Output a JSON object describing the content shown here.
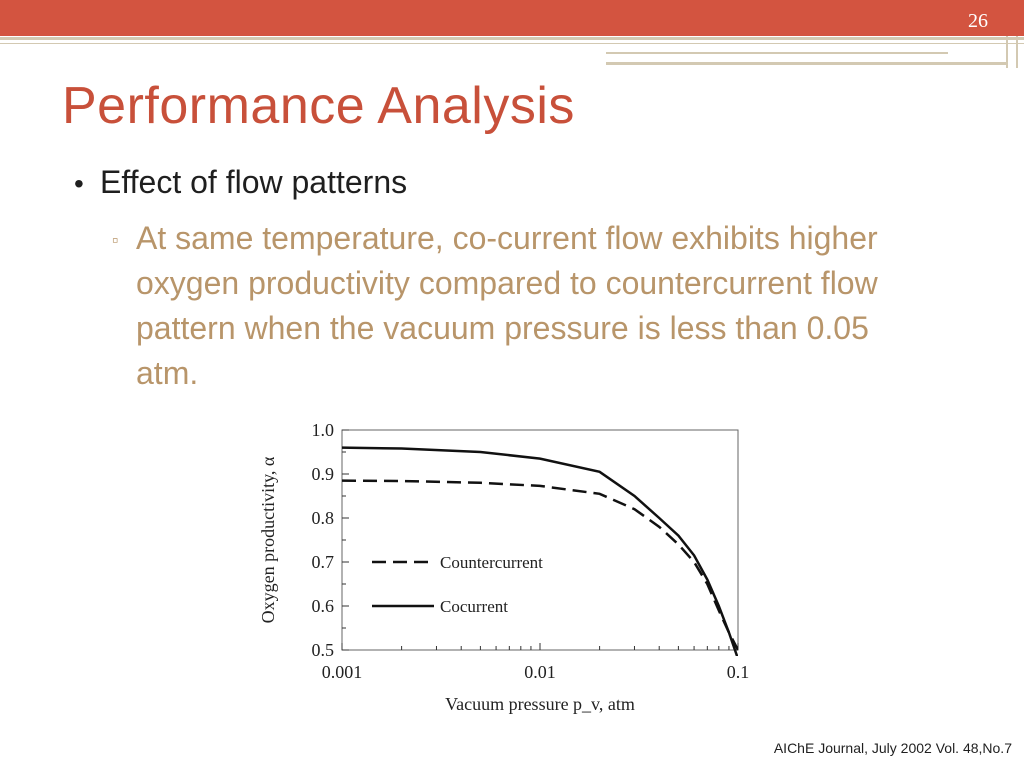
{
  "slide": {
    "number": "26",
    "title": "Performance Analysis",
    "bullet": "Effect of flow patterns",
    "sub_bullet": "At same temperature, co-current flow exhibits higher oxygen productivity compared to countercurrent flow pattern when the vacuum pressure is less than 0.05 atm.",
    "citation": "AIChE Journal, July 2002 Vol. 48,No.7",
    "colors": {
      "accent": "#d35440",
      "title": "#c8503a",
      "sub_text": "#b8956a",
      "rule": "#d3c9b2"
    }
  },
  "chart_data": {
    "type": "line",
    "xscale": "log",
    "xlim": [
      0.001,
      0.1
    ],
    "ylim": [
      0.5,
      1.0
    ],
    "xticks": [
      "0.001",
      "0.01",
      "0.1"
    ],
    "yticks": [
      "0.5",
      "0.6",
      "0.7",
      "0.8",
      "0.9",
      "1.0"
    ],
    "xlabel": "Vacuum pressure p_v, atm",
    "ylabel": "Oxygen productivity, α",
    "legend_position": "center-left",
    "series": [
      {
        "name": "Countercurrent",
        "style": "dashed",
        "x": [
          0.001,
          0.002,
          0.005,
          0.01,
          0.02,
          0.03,
          0.04,
          0.05,
          0.06,
          0.07,
          0.08,
          0.09,
          0.1
        ],
        "y": [
          0.885,
          0.884,
          0.88,
          0.873,
          0.855,
          0.82,
          0.78,
          0.74,
          0.7,
          0.65,
          0.59,
          0.54,
          0.5
        ]
      },
      {
        "name": "Cocurrent",
        "style": "solid",
        "x": [
          0.001,
          0.002,
          0.005,
          0.01,
          0.02,
          0.03,
          0.04,
          0.05,
          0.06,
          0.07,
          0.08,
          0.09,
          0.1
        ],
        "y": [
          0.96,
          0.958,
          0.95,
          0.935,
          0.905,
          0.85,
          0.8,
          0.76,
          0.715,
          0.66,
          0.6,
          0.54,
          0.48
        ]
      }
    ]
  }
}
